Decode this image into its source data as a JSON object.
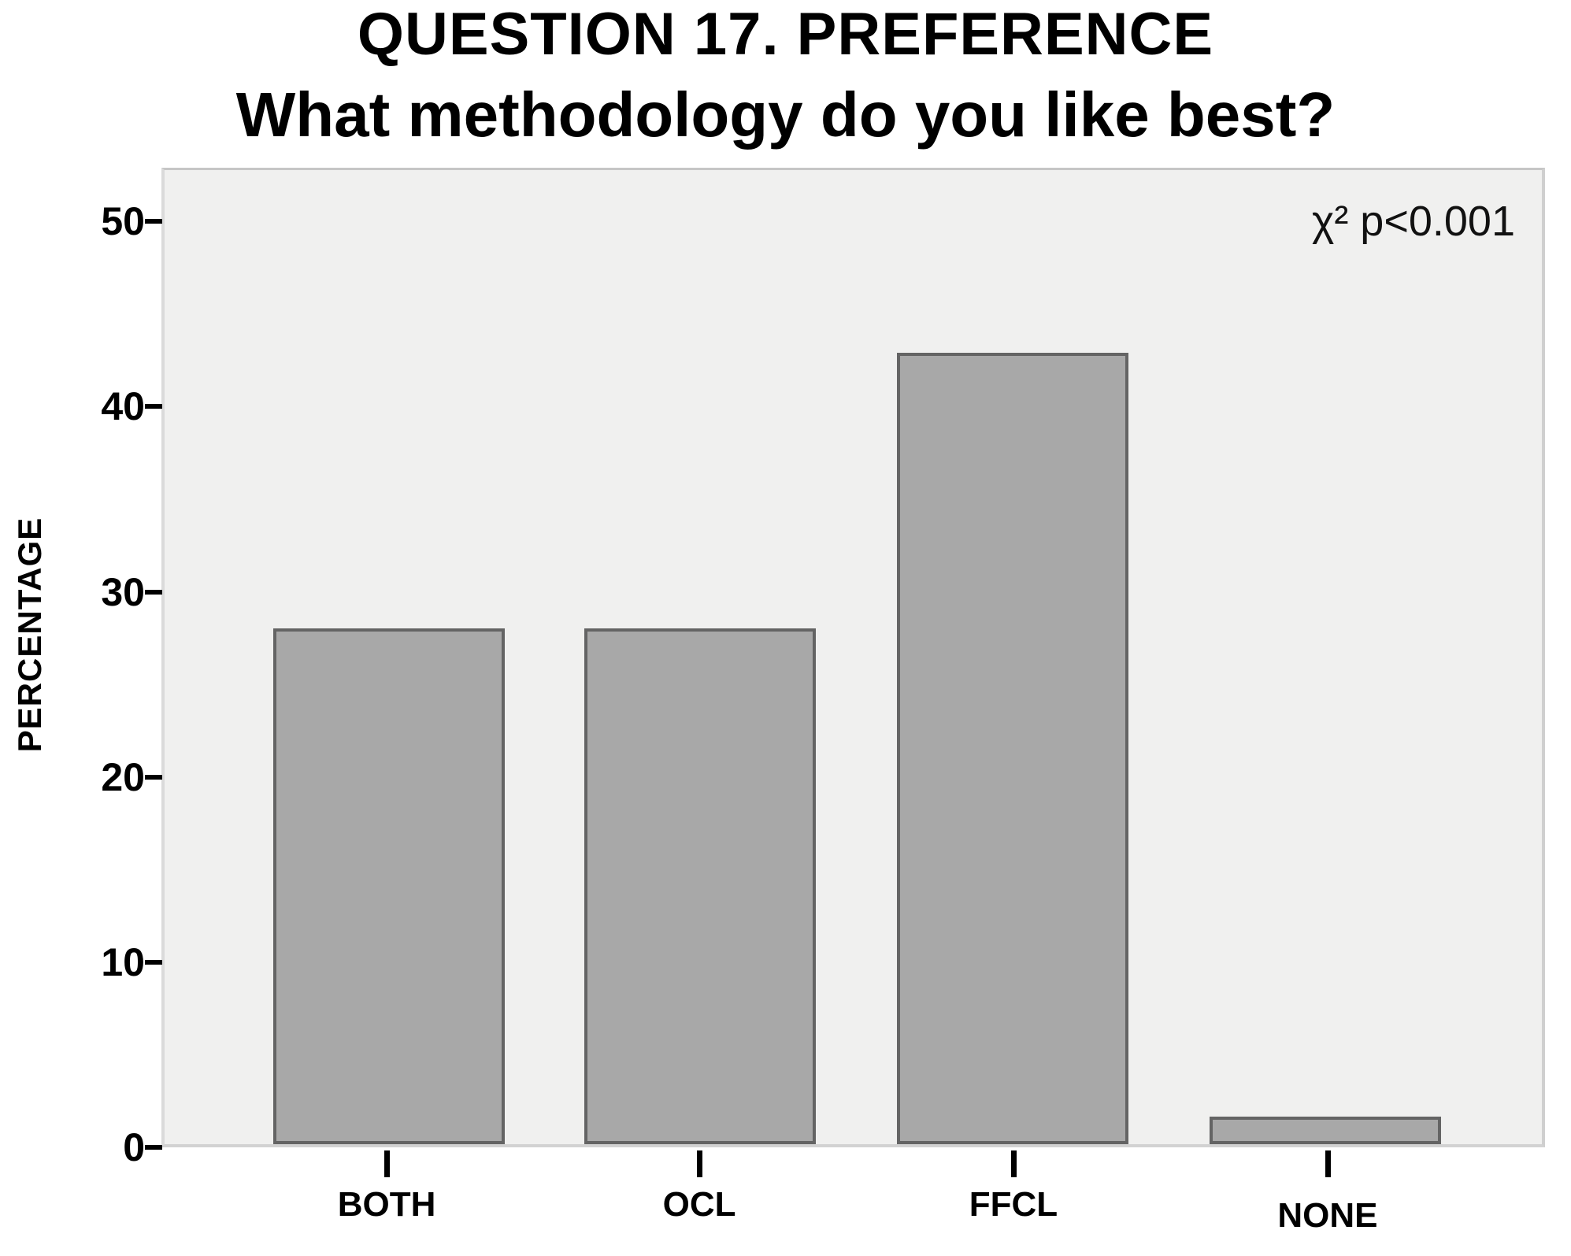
{
  "title": {
    "line1": "QUESTION 17. PREFERENCE",
    "line2": "What methodology do you like best?"
  },
  "annotation": "χ² p<0.001",
  "chart_data": {
    "type": "bar",
    "title": "QUESTION 17. PREFERENCE — What methodology do you like best?",
    "categories": [
      "BOTH",
      "OCL",
      "FFCL",
      "NONE"
    ],
    "values": [
      28,
      28,
      43,
      1.5
    ],
    "xlabel": "",
    "ylabel": "PERCENTAGE",
    "ylim": [
      0,
      52.9
    ],
    "yticks": [
      0,
      10,
      20,
      30,
      40,
      50
    ],
    "annotation": "χ² p<0.001",
    "grid": false,
    "legend_position": "none",
    "colors": {
      "bar_fill": "#a8a8a8",
      "bar_border": "#646464",
      "plot_background": "#f0f0ef",
      "plot_frame": "#cfcfcf",
      "text": "#000000"
    },
    "layout_hints": {
      "bar_center_percents": [
        16.28,
        38.88,
        61.58,
        84.29
      ],
      "bar_width_percent": 16.8
    }
  }
}
